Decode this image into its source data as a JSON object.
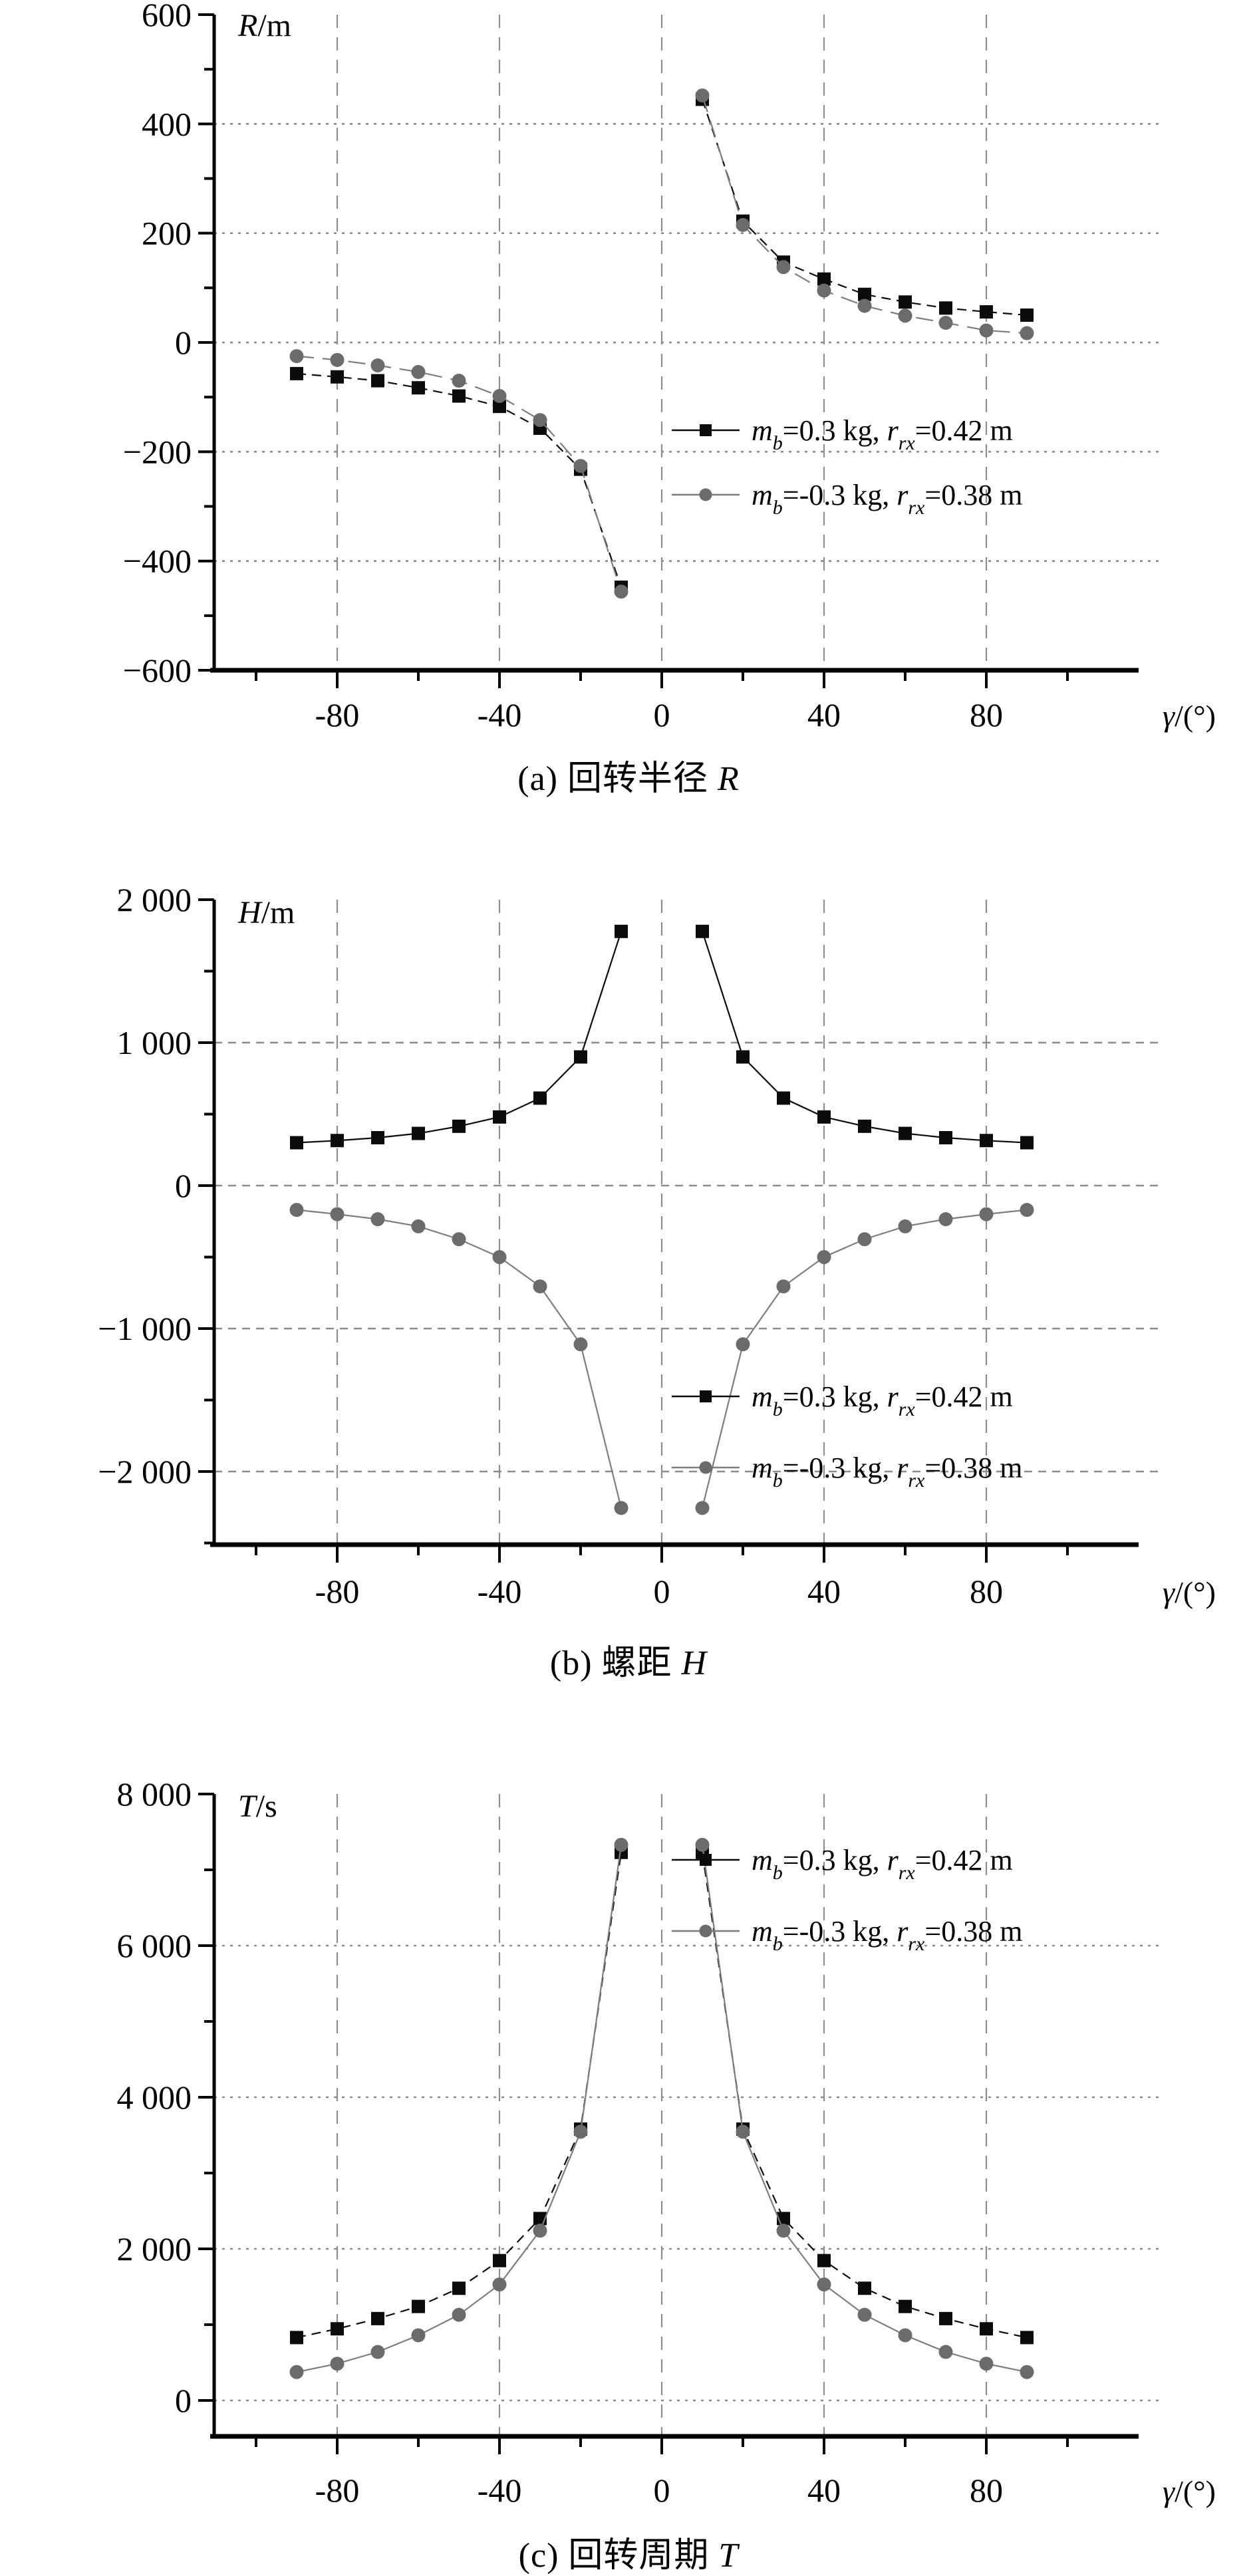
{
  "page_background": "#ffffff",
  "colors": {
    "black_series": "#0b0b0b",
    "gray_series_fill": "#6b6b6b",
    "gray_series_line": "#7d7d7d",
    "grid": "#8c8c8c",
    "axis": "#000000"
  },
  "legend": {
    "items": [
      {
        "marker": "square",
        "label_text": "mb=0.3 kg, rrx=0.42 m",
        "label_parts": [
          {
            "t": "m",
            "s": "i"
          },
          {
            "t": "b",
            "s": "sub"
          },
          {
            "t": "=0.3 kg, "
          },
          {
            "t": "r",
            "s": "i"
          },
          {
            "t": "rx",
            "s": "sub"
          },
          {
            "t": "=0.42 m"
          }
        ]
      },
      {
        "marker": "circle",
        "label_text": "mb=-0.3 kg, rrx=0.38 m",
        "label_parts": [
          {
            "t": "m",
            "s": "i"
          },
          {
            "t": "b",
            "s": "sub"
          },
          {
            "t": "=-0.3 kg, "
          },
          {
            "t": "r",
            "s": "i"
          },
          {
            "t": "rx",
            "s": "sub"
          },
          {
            "t": "=0.38 m"
          }
        ]
      }
    ]
  },
  "chart_data": [
    {
      "type": "line",
      "key": "a",
      "caption": {
        "prefix": "(a) 回转半径 ",
        "letter": "R",
        "text": "(a) 回转半径 R"
      },
      "ylabel_text": "R/m",
      "ylabel_parts": [
        {
          "t": "R",
          "s": "i"
        },
        {
          "t": "/m"
        }
      ],
      "xlabel_text": "γ/(°)",
      "xlabel_parts": [
        {
          "t": "γ",
          "s": "i"
        },
        {
          "t": "/(°)"
        }
      ],
      "xlim": [
        -110,
        115
      ],
      "ylim": [
        -600,
        600
      ],
      "grid": true,
      "legend_position": "center-right",
      "x": [
        -90,
        -80,
        -70,
        -60,
        -50,
        -40,
        -30,
        -20,
        -10,
        10,
        20,
        30,
        40,
        50,
        60,
        70,
        80,
        90
      ],
      "series": [
        {
          "name": "mb=0.3 kg, rrx=0.42 m",
          "marker": "square",
          "values": [
            -57,
            -63,
            -70,
            -83,
            -98,
            -117,
            -157,
            -232,
            -448,
            445,
            222,
            147,
            116,
            88,
            74,
            63,
            56,
            50
          ]
        },
        {
          "name": "mb=-0.3 kg, rrx=0.38 m",
          "marker": "circle",
          "values": [
            -25,
            -32,
            -42,
            -54,
            -70,
            -98,
            -142,
            -226,
            -456,
            452,
            215,
            138,
            95,
            67,
            49,
            36,
            22,
            17
          ]
        }
      ],
      "yticks": [
        {
          "v": 600,
          "label": "600"
        },
        {
          "v": 400,
          "label": "400"
        },
        {
          "v": 200,
          "label": "200"
        },
        {
          "v": 0,
          "label": "0"
        },
        {
          "v": -200,
          "label": "−200"
        },
        {
          "v": -400,
          "label": "−400"
        },
        {
          "v": -600,
          "label": "−600"
        }
      ],
      "xticks": [
        {
          "v": -80,
          "label": "-80"
        },
        {
          "v": -40,
          "label": "-40"
        },
        {
          "v": 0,
          "label": "0"
        },
        {
          "v": 40,
          "label": "40"
        },
        {
          "v": 80,
          "label": "80"
        }
      ]
    },
    {
      "type": "line",
      "key": "b",
      "caption": {
        "prefix": "(b) 螺距 ",
        "letter": "H",
        "text": "(b) 螺距 H"
      },
      "ylabel_text": "H/m",
      "ylabel_parts": [
        {
          "t": "H",
          "s": "i"
        },
        {
          "t": "/m"
        }
      ],
      "xlabel_text": "γ/(°)",
      "xlabel_parts": [
        {
          "t": "γ",
          "s": "i"
        },
        {
          "t": "/(°)"
        }
      ],
      "xlim": [
        -110,
        115
      ],
      "ylim": [
        -2500,
        2000
      ],
      "grid": true,
      "legend_position": "lower-right",
      "x": [
        -90,
        -80,
        -70,
        -60,
        -50,
        -40,
        -30,
        -20,
        -10,
        10,
        20,
        30,
        40,
        50,
        60,
        70,
        80,
        90
      ],
      "series": [
        {
          "name": "mb=0.3 kg, rrx=0.42 m",
          "marker": "square",
          "values": [
            300,
            315,
            335,
            365,
            415,
            480,
            612,
            900,
            1778,
            1778,
            900,
            612,
            480,
            415,
            365,
            335,
            315,
            300
          ]
        },
        {
          "name": "mb=-0.3 kg, rrx=0.38 m",
          "marker": "circle",
          "values": [
            -170,
            -200,
            -235,
            -285,
            -375,
            -500,
            -705,
            -1110,
            -2255,
            -2255,
            -1110,
            -705,
            -500,
            -375,
            -285,
            -235,
            -200,
            -170
          ]
        }
      ],
      "yticks": [
        {
          "v": 2000,
          "label": "2 000"
        },
        {
          "v": 1000,
          "label": "1 000"
        },
        {
          "v": 0,
          "label": "0"
        },
        {
          "v": -1000,
          "label": "−1 000"
        },
        {
          "v": -2000,
          "label": "−2 000"
        }
      ],
      "xticks": [
        {
          "v": -80,
          "label": "-80"
        },
        {
          "v": -40,
          "label": "-40"
        },
        {
          "v": 0,
          "label": "0"
        },
        {
          "v": 40,
          "label": "40"
        },
        {
          "v": 80,
          "label": "80"
        }
      ]
    },
    {
      "type": "line",
      "key": "c",
      "caption": {
        "prefix": "(c) 回转周期 ",
        "letter": "T",
        "text": "(c) 回转周期 T"
      },
      "ylabel_text": "T/s",
      "ylabel_parts": [
        {
          "t": "T",
          "s": "i"
        },
        {
          "t": "/s"
        }
      ],
      "xlabel_text": "γ/(°)",
      "xlabel_parts": [
        {
          "t": "γ",
          "s": "i"
        },
        {
          "t": "/(°)"
        }
      ],
      "xlim": [
        -110,
        115
      ],
      "ylim": [
        -500,
        8000
      ],
      "grid": true,
      "legend_position": "upper-right",
      "x": [
        -90,
        -80,
        -70,
        -60,
        -50,
        -40,
        -30,
        -20,
        -10,
        10,
        20,
        30,
        40,
        50,
        60,
        70,
        80,
        90
      ],
      "series": [
        {
          "name": "mb=0.3 kg, rrx=0.42 m",
          "marker": "square",
          "values": [
            830,
            945,
            1080,
            1240,
            1480,
            1845,
            2400,
            3580,
            7230,
            7230,
            3580,
            2400,
            1845,
            1480,
            1240,
            1080,
            945,
            830
          ]
        },
        {
          "name": "mb=-0.3 kg, rrx=0.38 m",
          "marker": "circle",
          "values": [
            375,
            485,
            640,
            860,
            1130,
            1530,
            2240,
            3545,
            7330,
            7330,
            3545,
            2240,
            1530,
            1130,
            860,
            640,
            485,
            375
          ]
        }
      ],
      "yticks": [
        {
          "v": 8000,
          "label": "8 000"
        },
        {
          "v": 6000,
          "label": "6 000"
        },
        {
          "v": 4000,
          "label": "4 000"
        },
        {
          "v": 2000,
          "label": "2 000"
        },
        {
          "v": 0,
          "label": "0"
        }
      ],
      "xticks": [
        {
          "v": -80,
          "label": "-80"
        },
        {
          "v": -40,
          "label": "-40"
        },
        {
          "v": 0,
          "label": "0"
        },
        {
          "v": 40,
          "label": "40"
        },
        {
          "v": 80,
          "label": "80"
        }
      ]
    }
  ]
}
